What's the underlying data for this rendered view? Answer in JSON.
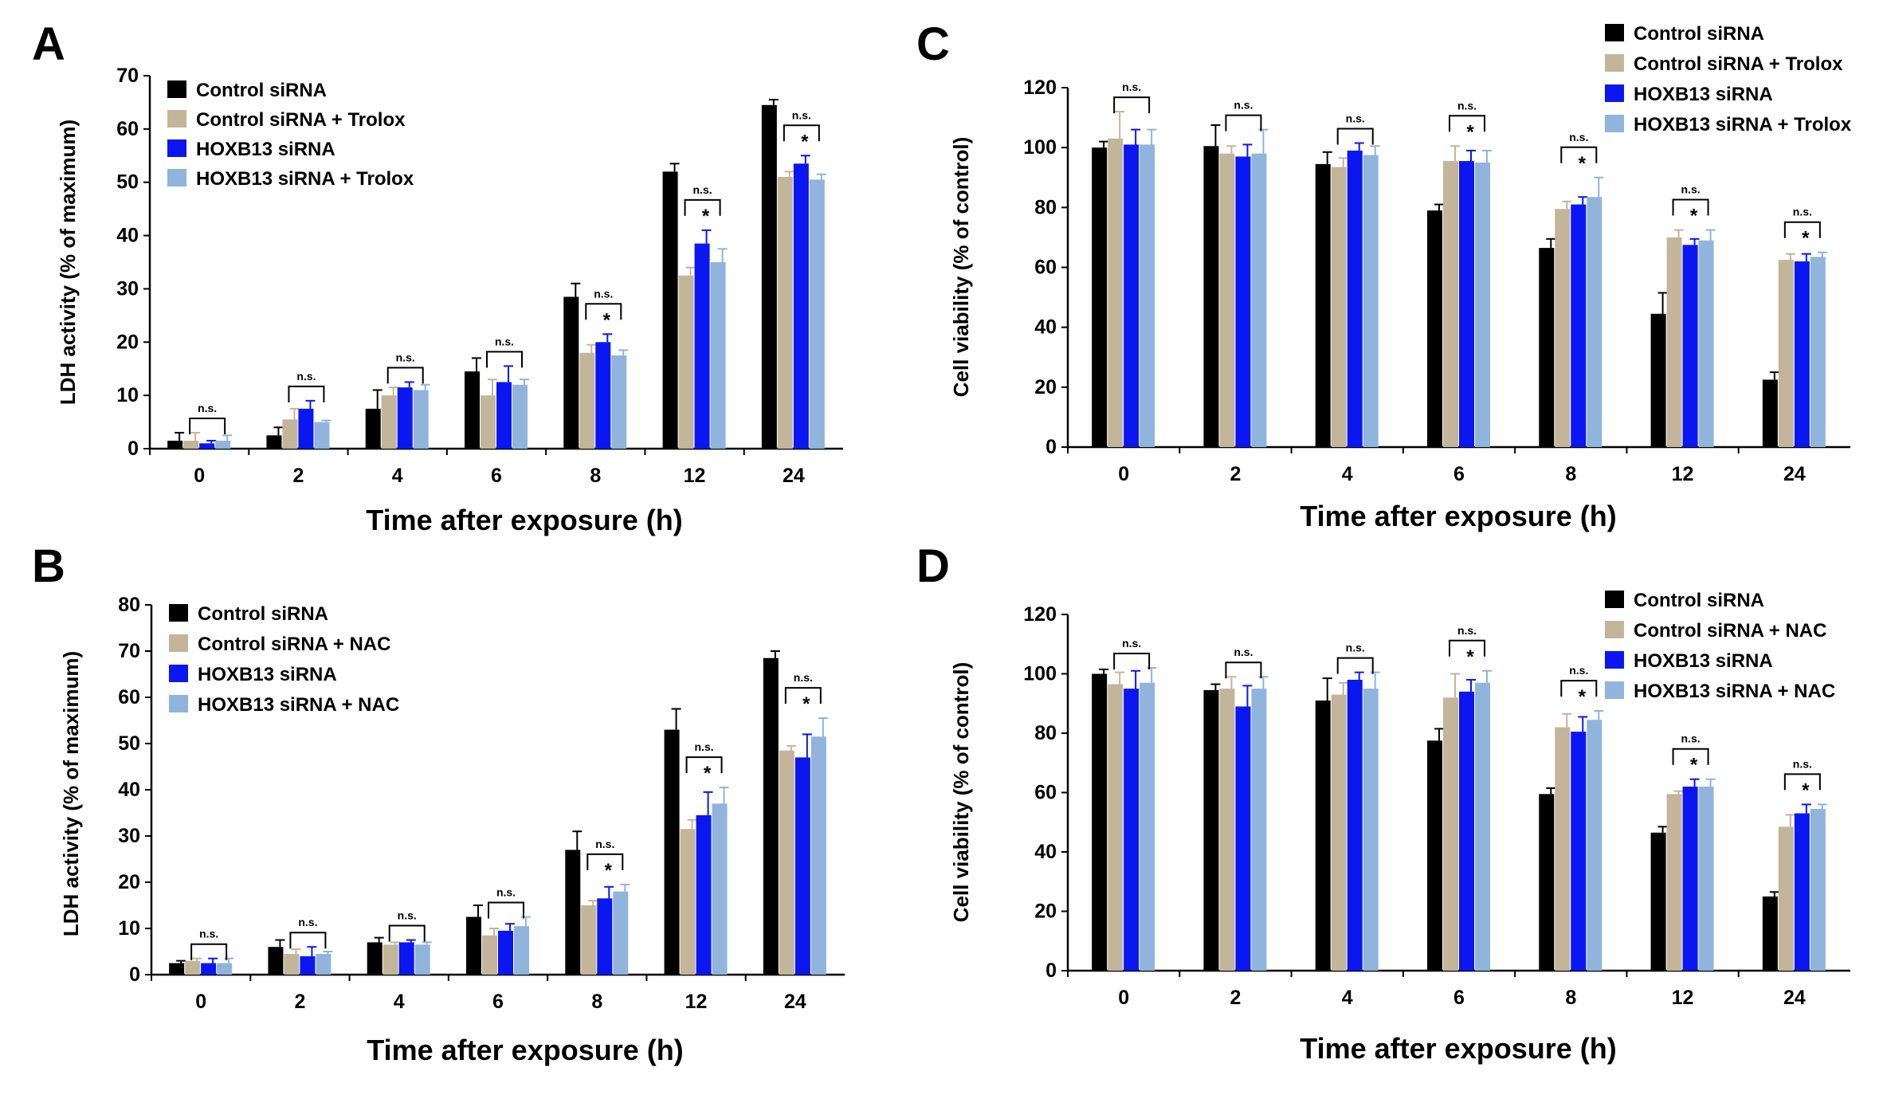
{
  "figure": {
    "series_colors": [
      "#000000",
      "#c3b59a",
      "#0a17f0",
      "#90b4dc"
    ],
    "ns_label": "n.s.",
    "star_label": "*"
  },
  "chart_data": [
    {
      "panel": "A",
      "type": "bar",
      "xlabel": "Time after exposure (h)",
      "ylabel": "LDH activity (% of maximum)",
      "ylim": [
        0,
        70
      ],
      "yticks": [
        0,
        10,
        20,
        30,
        40,
        50,
        60,
        70
      ],
      "categories": [
        "0",
        "2",
        "4",
        "6",
        "8",
        "12",
        "24"
      ],
      "legend_position": "top-left",
      "series": [
        {
          "name": "Control siRNA",
          "values": [
            1.5,
            2.5,
            7.5,
            14.5,
            28.5,
            52,
            64.5
          ],
          "errors": [
            1.5,
            1.5,
            3.5,
            2.5,
            2.5,
            1.5,
            1.0
          ]
        },
        {
          "name": "Control siRNA + Trolox",
          "values": [
            1.5,
            5.5,
            10,
            10,
            18,
            32.5,
            51
          ],
          "errors": [
            1.5,
            2.0,
            1.5,
            3.0,
            1.5,
            1.5,
            1.0
          ]
        },
        {
          "name": "HOXB13 siRNA",
          "values": [
            1,
            7.5,
            11.5,
            12.5,
            20,
            38.5,
            53.5
          ],
          "errors": [
            0.5,
            1.5,
            1.0,
            3.0,
            1.5,
            2.5,
            1.5
          ]
        },
        {
          "name": "HOXB13 siRNA + Trolox",
          "values": [
            1.5,
            5,
            11,
            12,
            17.5,
            35,
            50.5
          ],
          "errors": [
            1.0,
            0.3,
            1.0,
            1.0,
            1.0,
            2.5,
            1.0
          ]
        }
      ],
      "annotations": [
        {
          "category": "0",
          "ns": true,
          "star": false
        },
        {
          "category": "2",
          "ns": true,
          "star": false
        },
        {
          "category": "4",
          "ns": true,
          "star": false
        },
        {
          "category": "6",
          "ns": true,
          "star": false
        },
        {
          "category": "8",
          "ns": true,
          "star": true
        },
        {
          "category": "12",
          "ns": true,
          "star": true
        },
        {
          "category": "24",
          "ns": true,
          "star": true
        }
      ]
    },
    {
      "panel": "B",
      "type": "bar",
      "xlabel": "Time after exposure (h)",
      "ylabel": "LDH activity (% of maximum)",
      "ylim": [
        0,
        80
      ],
      "yticks": [
        0,
        10,
        20,
        30,
        40,
        50,
        60,
        70,
        80
      ],
      "categories": [
        "0",
        "2",
        "4",
        "6",
        "8",
        "12",
        "24"
      ],
      "legend_position": "top-left",
      "series": [
        {
          "name": "Control siRNA",
          "values": [
            2.5,
            6,
            7,
            12.5,
            27,
            53,
            68.5
          ],
          "errors": [
            0.5,
            1.5,
            1.0,
            2.5,
            4.0,
            4.5,
            1.5
          ]
        },
        {
          "name": "Control siRNA + NAC",
          "values": [
            3,
            4.5,
            6.5,
            8.5,
            15,
            31.5,
            48.5
          ],
          "errors": [
            0.5,
            1.0,
            0.5,
            1.5,
            1.0,
            2.0,
            1.0
          ]
        },
        {
          "name": "HOXB13 siRNA",
          "values": [
            2.5,
            4,
            7,
            9.5,
            16.5,
            34.5,
            47
          ],
          "errors": [
            1.0,
            2.0,
            0.5,
            1.5,
            2.5,
            5.0,
            5.0
          ]
        },
        {
          "name": "HOXB13 siRNA + NAC",
          "values": [
            2.5,
            4.5,
            6.5,
            10.5,
            18,
            37,
            51.5
          ],
          "errors": [
            1.0,
            0.5,
            0.5,
            2.0,
            1.5,
            3.5,
            4.0
          ]
        }
      ],
      "annotations": [
        {
          "category": "0",
          "ns": true,
          "star": false
        },
        {
          "category": "2",
          "ns": true,
          "star": false
        },
        {
          "category": "4",
          "ns": true,
          "star": false
        },
        {
          "category": "6",
          "ns": true,
          "star": false
        },
        {
          "category": "8",
          "ns": true,
          "star": true
        },
        {
          "category": "12",
          "ns": true,
          "star": true
        },
        {
          "category": "24",
          "ns": true,
          "star": true
        }
      ]
    },
    {
      "panel": "C",
      "type": "bar",
      "xlabel": "Time after exposure (h)",
      "ylabel": "Cell viability (% of control)",
      "ylim": [
        0,
        120
      ],
      "yticks": [
        0,
        20,
        40,
        60,
        80,
        100,
        120
      ],
      "categories": [
        "0",
        "2",
        "4",
        "6",
        "8",
        "12",
        "24"
      ],
      "legend_position": "top-right",
      "series": [
        {
          "name": "Control siRNA",
          "values": [
            100,
            100.5,
            94.5,
            79,
            66.5,
            44.5,
            22.5
          ],
          "errors": [
            2.0,
            7.0,
            4.0,
            2.0,
            3.0,
            7.0,
            2.5
          ]
        },
        {
          "name": "Control siRNA + Trolox",
          "values": [
            103,
            98,
            93.5,
            95.5,
            79.5,
            70,
            62.5
          ],
          "errors": [
            9.0,
            2.5,
            3.0,
            5.0,
            2.5,
            2.5,
            2.0
          ]
        },
        {
          "name": "HOXB13 siRNA",
          "values": [
            101,
            97,
            99,
            95.5,
            81,
            67.5,
            62
          ],
          "errors": [
            5.0,
            4.0,
            2.5,
            3.5,
            2.5,
            2.0,
            2.5
          ]
        },
        {
          "name": "HOXB13 siRNA + Trolox",
          "values": [
            101,
            98,
            97.5,
            95,
            83.5,
            69,
            63.5
          ],
          "errors": [
            5.0,
            8.0,
            3.0,
            4.0,
            6.5,
            3.5,
            1.5
          ]
        }
      ],
      "annotations": [
        {
          "category": "0",
          "ns": true,
          "star": false
        },
        {
          "category": "2",
          "ns": true,
          "star": false
        },
        {
          "category": "4",
          "ns": true,
          "star": false
        },
        {
          "category": "6",
          "ns": true,
          "star": true
        },
        {
          "category": "8",
          "ns": true,
          "star": true
        },
        {
          "category": "12",
          "ns": true,
          "star": true
        },
        {
          "category": "24",
          "ns": true,
          "star": true
        }
      ]
    },
    {
      "panel": "D",
      "type": "bar",
      "xlabel": "Time after exposure (h)",
      "ylabel": "Cell viability (% of control)",
      "ylim": [
        0,
        120
      ],
      "yticks": [
        0,
        20,
        40,
        60,
        80,
        100,
        120
      ],
      "categories": [
        "0",
        "2",
        "4",
        "6",
        "8",
        "12",
        "24"
      ],
      "legend_position": "top-right",
      "series": [
        {
          "name": "Control siRNA",
          "values": [
            100,
            94.5,
            91,
            77.5,
            59.5,
            46.5,
            25
          ],
          "errors": [
            1.5,
            2.0,
            7.5,
            4.0,
            2.0,
            2.0,
            1.5
          ]
        },
        {
          "name": "Control siRNA + NAC",
          "values": [
            96.5,
            95,
            93,
            92,
            82,
            59.5,
            48.5
          ],
          "errors": [
            4.0,
            4.0,
            4.0,
            8.0,
            4.5,
            1.0,
            4.0
          ]
        },
        {
          "name": "HOXB13 siRNA",
          "values": [
            95,
            89,
            98,
            94,
            80.5,
            62,
            53
          ],
          "errors": [
            6.0,
            7.0,
            2.5,
            4.0,
            5.0,
            2.5,
            3.0
          ]
        },
        {
          "name": "HOXB13 siRNA + NAC",
          "values": [
            97,
            95,
            95,
            97,
            84.5,
            62,
            54.5
          ],
          "errors": [
            5.0,
            4.0,
            5.5,
            4.0,
            3.0,
            2.5,
            1.5
          ]
        }
      ],
      "annotations": [
        {
          "category": "0",
          "ns": true,
          "star": false
        },
        {
          "category": "2",
          "ns": true,
          "star": false
        },
        {
          "category": "4",
          "ns": true,
          "star": false
        },
        {
          "category": "6",
          "ns": true,
          "star": true
        },
        {
          "category": "8",
          "ns": true,
          "star": true
        },
        {
          "category": "12",
          "ns": true,
          "star": true
        },
        {
          "category": "24",
          "ns": true,
          "star": true
        }
      ]
    }
  ]
}
